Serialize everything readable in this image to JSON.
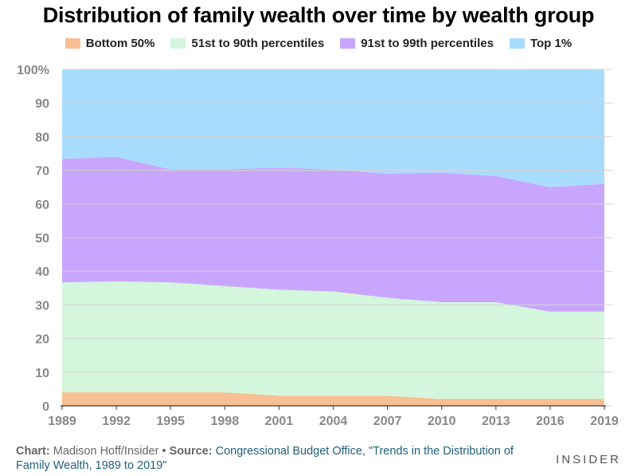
{
  "chart_data": {
    "type": "area",
    "stacked": true,
    "title": "Distribution of family wealth over time by wealth group",
    "x": [
      "1989",
      "1992",
      "1995",
      "1998",
      "2001",
      "2004",
      "2007",
      "2010",
      "2013",
      "2016",
      "2019"
    ],
    "series": [
      {
        "name": "Bottom 50%",
        "color": "#f7bf92",
        "values": [
          4,
          4,
          4,
          4,
          3,
          3,
          3,
          2,
          2,
          2,
          2
        ]
      },
      {
        "name": "51st to 90th percentiles",
        "color": "#d3f6dc",
        "values": [
          32.7,
          33,
          32.7,
          31.6,
          31.5,
          31,
          29.1,
          28.8,
          28.8,
          26,
          26
        ]
      },
      {
        "name": "91st to 99th percentiles",
        "color": "#c9a6fd",
        "values": [
          36.7,
          37,
          33.6,
          34.7,
          36.3,
          36.2,
          36.9,
          38.5,
          37.5,
          37,
          38
        ]
      },
      {
        "name": "Top 1%",
        "color": "#a8dcfd",
        "values": [
          26.6,
          26,
          29.7,
          29.7,
          29.2,
          29.8,
          31,
          30.7,
          31.7,
          35,
          34
        ]
      }
    ],
    "y_ticks": [
      "0",
      "10",
      "20",
      "30",
      "40",
      "50",
      "60",
      "70",
      "80",
      "90",
      "100%"
    ],
    "ylim": [
      0,
      100
    ],
    "grid": true,
    "legend_position": "top"
  },
  "footer": {
    "chart_label": "Chart:",
    "author": "Madison Hoff/Insider",
    "bullet": "•",
    "source_label": "Source:",
    "source": "Congressional Budget Office, \"Trends in the Distribution of Family Wealth, 1989 to 2019\""
  },
  "brand": "INSIDER"
}
